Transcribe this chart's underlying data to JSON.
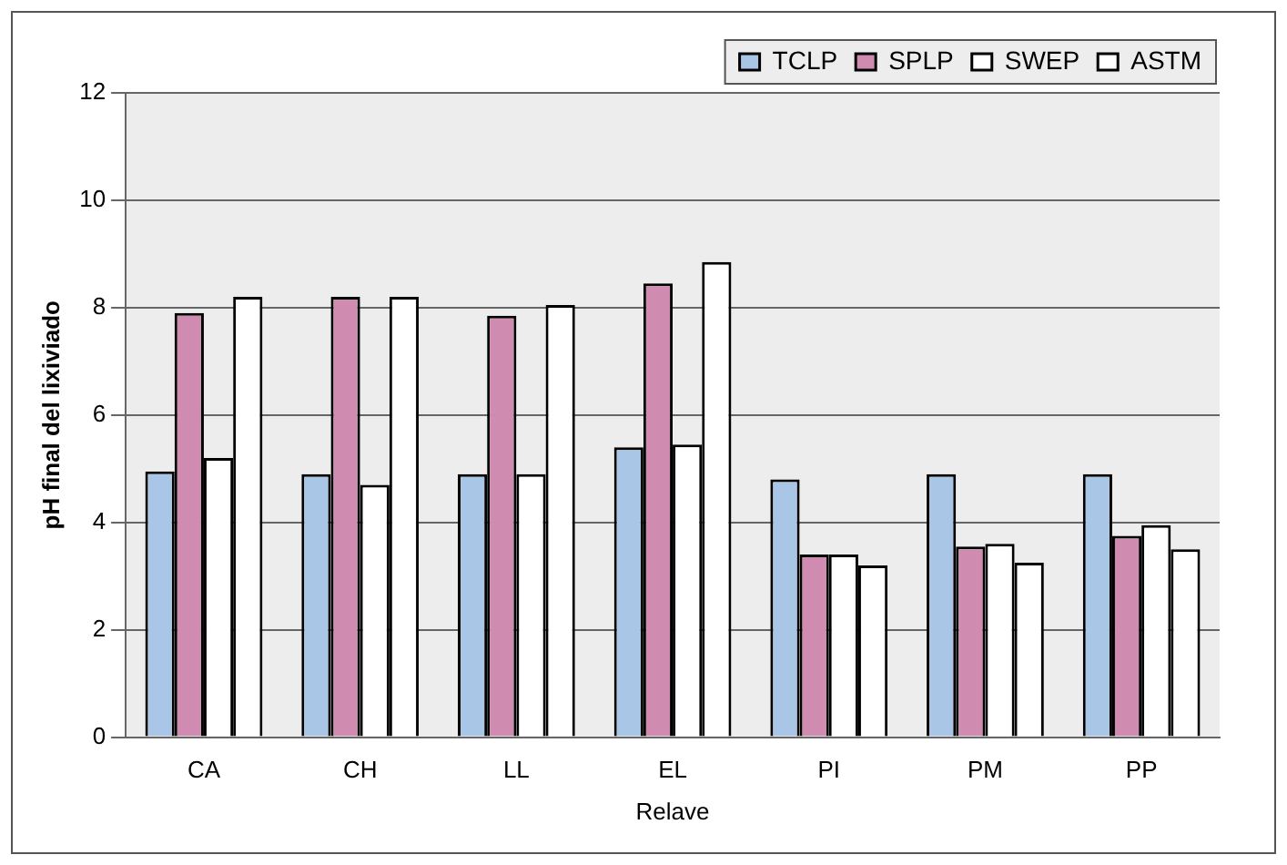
{
  "chart_data": {
    "type": "bar",
    "xlabel": "Relave",
    "ylabel": "pH final del lixiviado",
    "categories": [
      "CA",
      "CH",
      "LL",
      "EL",
      "PI",
      "PM",
      "PP"
    ],
    "series": [
      {
        "name": "TCLP",
        "color": "#a9c6e6",
        "values": [
          4.95,
          4.9,
          4.9,
          5.4,
          4.8,
          4.9,
          4.9
        ]
      },
      {
        "name": "SPLP",
        "color": "#cf8cb0",
        "values": [
          7.9,
          8.2,
          7.85,
          8.45,
          3.4,
          3.55,
          3.75
        ]
      },
      {
        "name": "SWEP",
        "color": "#ffffff",
        "values": [
          5.2,
          4.7,
          4.9,
          5.45,
          3.4,
          3.6,
          3.95
        ]
      },
      {
        "name": "ASTM",
        "color": "#ffffff",
        "values": [
          8.2,
          8.2,
          8.05,
          8.85,
          3.2,
          3.25,
          3.5
        ]
      }
    ],
    "ylim": [
      0,
      12
    ],
    "yticks": [
      0,
      2,
      4,
      6,
      8,
      10,
      12
    ],
    "grid": "y",
    "legend": "top right"
  }
}
